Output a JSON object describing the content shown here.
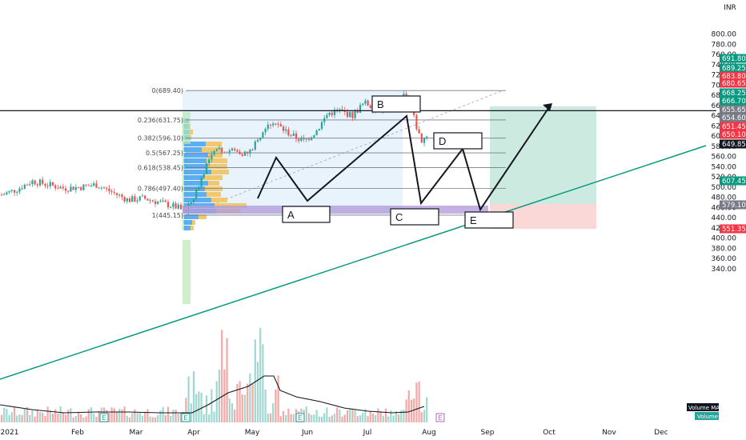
{
  "chart_data": {
    "type": "candlestick",
    "currency": "INR",
    "ylim": [
      330,
      812
    ],
    "y_ticks": [
      340,
      360,
      380,
      400,
      420,
      440,
      460,
      480,
      500,
      520,
      540,
      560,
      580,
      600,
      620,
      640,
      660,
      680,
      700,
      720,
      740,
      760,
      780,
      800
    ],
    "x_ticks": [
      "2021",
      "Feb",
      "Mar",
      "Apr",
      "May",
      "Jun",
      "Jul",
      "Aug",
      "Sep",
      "Oct",
      "Nov",
      "Dec"
    ],
    "fib_levels": [
      {
        "label": "0(689.40)",
        "value": 689.4
      },
      {
        "label": "0.236(631.75)",
        "value": 631.75
      },
      {
        "label": "0.382(596.10)",
        "value": 596.1
      },
      {
        "label": "0.5(567.25)",
        "value": 567.25
      },
      {
        "label": "0.618(538.45)",
        "value": 538.45
      },
      {
        "label": "0.786(497.40)",
        "value": 497.4
      },
      {
        "label": "1(445.15)",
        "value": 445.15
      }
    ],
    "price_tags": [
      {
        "label": "691.80",
        "color": "#089981"
      },
      {
        "label": "689.25",
        "color": "#089981"
      },
      {
        "label": "683.80",
        "color": "#f23645"
      },
      {
        "label": "680.65",
        "color": "#f23645"
      },
      {
        "label": "668.25",
        "color": "#089981"
      },
      {
        "label": "666.70",
        "color": "#089981"
      },
      {
        "label": "655.65",
        "color": "#787b86"
      },
      {
        "label": "654.60",
        "color": "#787b86"
      },
      {
        "label": "651.45",
        "color": "#f23645"
      },
      {
        "label": "650.10",
        "color": "#f23645"
      },
      {
        "label": "649.85",
        "color": "#131722"
      },
      {
        "label": "607.45",
        "color": "#089981"
      },
      {
        "label": "579.10",
        "color": "#787b86"
      },
      {
        "label": "551.35",
        "color": "#f23645"
      }
    ],
    "horizontal_line": 649.85,
    "wave_points": [
      "A",
      "B",
      "C",
      "D",
      "E"
    ],
    "volume_labels": [
      "Volume MA",
      "Volume"
    ],
    "earnings_marker": "E"
  },
  "colors": {
    "up": "#26a69a",
    "down": "#ef5350",
    "trendline": "#089981",
    "position_profit": "#c8e8de",
    "position_loss": "#f9d4d4",
    "fib_bg": "#e9f3fc",
    "support_zone": "#b39ddb"
  }
}
